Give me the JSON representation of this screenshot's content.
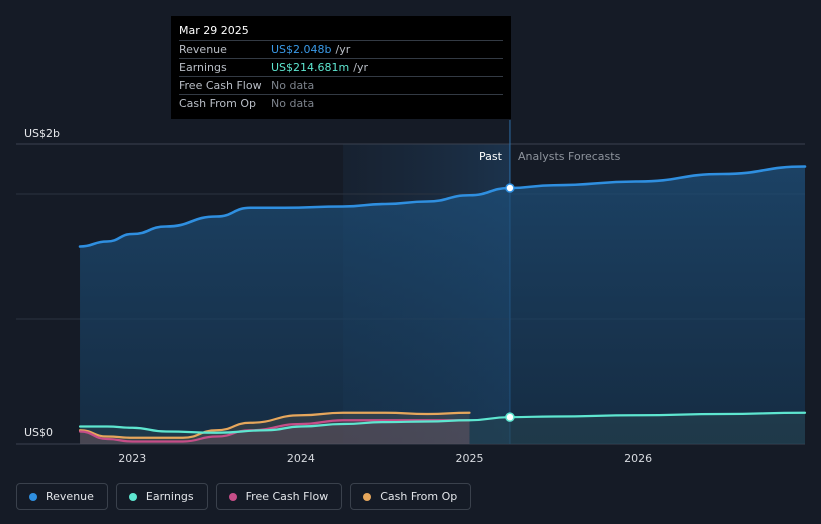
{
  "chart_data": {
    "type": "area",
    "y_unit_top": "US$2b",
    "y_unit_bottom": "US$0",
    "ylim": [
      0,
      2.4
    ],
    "x_ticks": [
      {
        "label": "2023",
        "x": 2023.0
      },
      {
        "label": "2024",
        "x": 2024.0
      },
      {
        "label": "2025",
        "x": 2025.0
      },
      {
        "label": "2026",
        "x": 2026.0
      }
    ],
    "xlim": [
      2022.5,
      2026.99
    ],
    "past_start": 2024.25,
    "forecast_start": 2025.24,
    "past_label": "Past",
    "forecast_label": "Analysts Forecasts",
    "series": [
      {
        "name": "Revenue",
        "color": "#2f8fe0",
        "points": [
          [
            2022.69,
            1.58
          ],
          [
            2022.85,
            1.62
          ],
          [
            2023.0,
            1.68
          ],
          [
            2023.2,
            1.74
          ],
          [
            2023.5,
            1.82
          ],
          [
            2023.7,
            1.89
          ],
          [
            2023.9,
            1.89
          ],
          [
            2024.25,
            1.9
          ],
          [
            2024.5,
            1.92
          ],
          [
            2024.75,
            1.94
          ],
          [
            2025.0,
            1.99
          ],
          [
            2025.24,
            2.048
          ],
          [
            2025.5,
            2.07
          ],
          [
            2026.0,
            2.1
          ],
          [
            2026.5,
            2.16
          ],
          [
            2026.99,
            2.22
          ]
        ],
        "forecast_from_index": 11
      },
      {
        "name": "Earnings",
        "color": "#5ee6d0",
        "points": [
          [
            2022.69,
            0.14
          ],
          [
            2022.85,
            0.14
          ],
          [
            2023.0,
            0.13
          ],
          [
            2023.2,
            0.1
          ],
          [
            2023.5,
            0.09
          ],
          [
            2023.8,
            0.11
          ],
          [
            2024.0,
            0.14
          ],
          [
            2024.25,
            0.16
          ],
          [
            2024.5,
            0.175
          ],
          [
            2024.75,
            0.18
          ],
          [
            2025.0,
            0.19
          ],
          [
            2025.24,
            0.214681
          ],
          [
            2025.5,
            0.22
          ],
          [
            2026.0,
            0.23
          ],
          [
            2026.5,
            0.24
          ],
          [
            2026.99,
            0.25
          ]
        ],
        "forecast_from_index": 11
      },
      {
        "name": "Free Cash Flow",
        "color": "#c64e88",
        "points": [
          [
            2022.69,
            0.1
          ],
          [
            2022.85,
            0.04
          ],
          [
            2023.0,
            0.02
          ],
          [
            2023.3,
            0.02
          ],
          [
            2023.5,
            0.06
          ],
          [
            2023.7,
            0.11
          ],
          [
            2024.0,
            0.16
          ],
          [
            2024.25,
            0.19
          ],
          [
            2024.5,
            0.19
          ],
          [
            2024.75,
            0.19
          ],
          [
            2025.0,
            0.19
          ]
        ]
      },
      {
        "name": "Cash From Op",
        "color": "#e6a75c",
        "points": [
          [
            2022.69,
            0.11
          ],
          [
            2022.85,
            0.06
          ],
          [
            2023.0,
            0.05
          ],
          [
            2023.3,
            0.05
          ],
          [
            2023.5,
            0.11
          ],
          [
            2023.7,
            0.17
          ],
          [
            2024.0,
            0.23
          ],
          [
            2024.25,
            0.25
          ],
          [
            2024.5,
            0.25
          ],
          [
            2024.75,
            0.24
          ],
          [
            2025.0,
            0.25
          ]
        ]
      }
    ]
  },
  "tooltip": {
    "date": "Mar 29 2025",
    "rows": [
      {
        "label": "Revenue",
        "value": "US$2.048b",
        "unit": "/yr"
      },
      {
        "label": "Earnings",
        "value": "US$214.681m",
        "unit": "/yr"
      },
      {
        "label": "Free Cash Flow",
        "value": "No data",
        "unit": ""
      },
      {
        "label": "Cash From Op",
        "value": "No data",
        "unit": ""
      }
    ]
  },
  "legend": [
    {
      "label": "Revenue",
      "color": "#2f8fe0"
    },
    {
      "label": "Earnings",
      "color": "#5ee6d0"
    },
    {
      "label": "Free Cash Flow",
      "color": "#c64e88"
    },
    {
      "label": "Cash From Op",
      "color": "#e6a75c"
    }
  ]
}
